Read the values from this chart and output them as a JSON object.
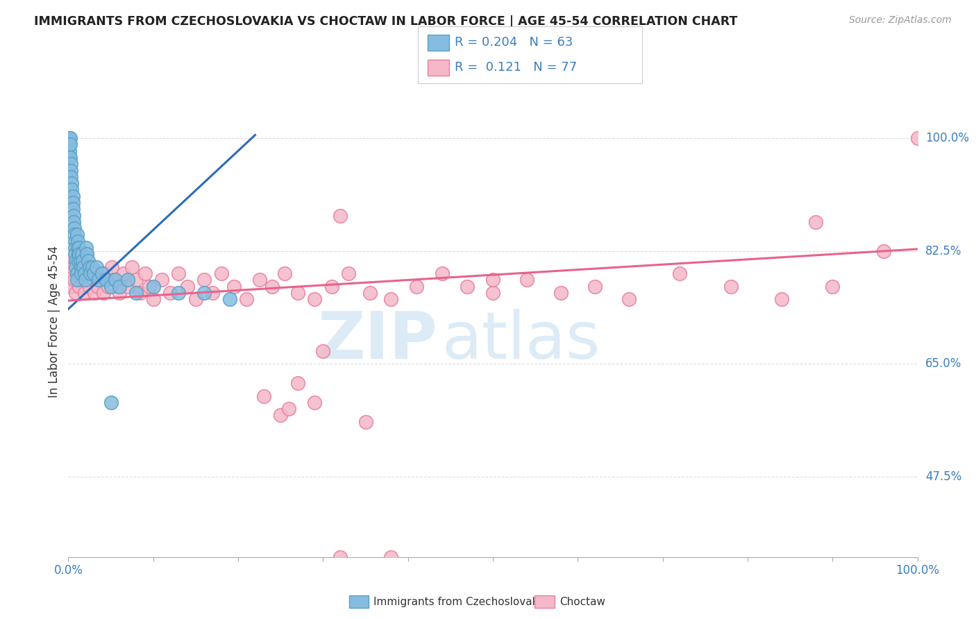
{
  "title": "IMMIGRANTS FROM CZECHOSLOVAKIA VS CHOCTAW IN LABOR FORCE | AGE 45-54 CORRELATION CHART",
  "source": "Source: ZipAtlas.com",
  "ylabel": "In Labor Force | Age 45-54",
  "x_min": 0.0,
  "x_max": 1.0,
  "y_min": 0.35,
  "y_max": 1.08,
  "x_ticks": [
    0.0,
    0.1,
    0.2,
    0.3,
    0.4,
    0.5,
    0.6,
    0.7,
    0.8,
    0.9,
    1.0
  ],
  "y_tick_labels_right": [
    "100.0%",
    "82.5%",
    "65.0%",
    "47.5%"
  ],
  "y_tick_values_right": [
    1.0,
    0.825,
    0.65,
    0.475
  ],
  "watermark_zip": "ZIP",
  "watermark_atlas": "atlas",
  "blue_color": "#85bde0",
  "blue_edge_color": "#5a9fc5",
  "pink_color": "#f4b8c8",
  "pink_edge_color": "#e87fa0",
  "blue_line_color": "#2b6cb8",
  "pink_line_color": "#e8638a",
  "blue_trend_x": [
    0.0,
    0.22
  ],
  "blue_trend_y": [
    0.735,
    1.005
  ],
  "pink_trend_x": [
    0.0,
    1.0
  ],
  "pink_trend_y": [
    0.748,
    0.828
  ],
  "blue_points_x": [
    0.001,
    0.001,
    0.001,
    0.001,
    0.001,
    0.002,
    0.002,
    0.002,
    0.003,
    0.003,
    0.003,
    0.004,
    0.004,
    0.005,
    0.005,
    0.005,
    0.006,
    0.006,
    0.007,
    0.007,
    0.008,
    0.008,
    0.008,
    0.009,
    0.009,
    0.01,
    0.01,
    0.01,
    0.011,
    0.011,
    0.012,
    0.012,
    0.013,
    0.013,
    0.014,
    0.015,
    0.015,
    0.016,
    0.017,
    0.018,
    0.019,
    0.02,
    0.021,
    0.022,
    0.023,
    0.025,
    0.026,
    0.028,
    0.03,
    0.033,
    0.036,
    0.04,
    0.045,
    0.05,
    0.055,
    0.06,
    0.07,
    0.08,
    0.1,
    0.13,
    0.16,
    0.19,
    0.05
  ],
  "blue_points_y": [
    1.0,
    1.0,
    0.99,
    0.98,
    0.97,
    1.0,
    0.99,
    0.97,
    0.96,
    0.95,
    0.94,
    0.93,
    0.92,
    0.91,
    0.9,
    0.89,
    0.88,
    0.87,
    0.86,
    0.85,
    0.84,
    0.83,
    0.82,
    0.81,
    0.8,
    0.79,
    0.78,
    0.85,
    0.84,
    0.83,
    0.82,
    0.81,
    0.83,
    0.82,
    0.81,
    0.8,
    0.79,
    0.82,
    0.81,
    0.8,
    0.79,
    0.78,
    0.83,
    0.82,
    0.81,
    0.8,
    0.79,
    0.8,
    0.79,
    0.8,
    0.78,
    0.79,
    0.78,
    0.77,
    0.78,
    0.77,
    0.78,
    0.76,
    0.77,
    0.76,
    0.76,
    0.75,
    0.59
  ],
  "pink_points_x": [
    0.001,
    0.002,
    0.003,
    0.005,
    0.007,
    0.009,
    0.011,
    0.013,
    0.015,
    0.017,
    0.019,
    0.021,
    0.023,
    0.025,
    0.027,
    0.029,
    0.031,
    0.033,
    0.035,
    0.038,
    0.041,
    0.044,
    0.047,
    0.051,
    0.055,
    0.06,
    0.065,
    0.07,
    0.075,
    0.08,
    0.085,
    0.09,
    0.095,
    0.1,
    0.11,
    0.12,
    0.13,
    0.14,
    0.15,
    0.16,
    0.17,
    0.18,
    0.195,
    0.21,
    0.225,
    0.24,
    0.255,
    0.27,
    0.29,
    0.31,
    0.33,
    0.355,
    0.38,
    0.41,
    0.44,
    0.47,
    0.5,
    0.54,
    0.58,
    0.62,
    0.66,
    0.72,
    0.78,
    0.84,
    0.9,
    0.96,
    0.3,
    0.27,
    0.25,
    0.23,
    0.32,
    0.35,
    0.29,
    0.26,
    0.38,
    0.5
  ],
  "pink_points_y": [
    0.81,
    0.79,
    0.77,
    0.8,
    0.78,
    0.76,
    0.79,
    0.77,
    0.8,
    0.78,
    0.76,
    0.82,
    0.79,
    0.77,
    0.8,
    0.78,
    0.76,
    0.79,
    0.77,
    0.78,
    0.76,
    0.79,
    0.77,
    0.8,
    0.78,
    0.76,
    0.79,
    0.77,
    0.8,
    0.78,
    0.76,
    0.79,
    0.77,
    0.75,
    0.78,
    0.76,
    0.79,
    0.77,
    0.75,
    0.78,
    0.76,
    0.79,
    0.77,
    0.75,
    0.78,
    0.77,
    0.79,
    0.76,
    0.75,
    0.77,
    0.79,
    0.76,
    0.75,
    0.77,
    0.79,
    0.77,
    0.76,
    0.78,
    0.76,
    0.77,
    0.75,
    0.79,
    0.77,
    0.75,
    0.77,
    0.825,
    0.67,
    0.62,
    0.57,
    0.6,
    0.88,
    0.56,
    0.59,
    0.58,
    0.35,
    0.78
  ],
  "pink_outlier_x": [
    0.88
  ],
  "pink_outlier_y": [
    0.87
  ],
  "pink_far_x": [
    1.0
  ],
  "pink_far_y": [
    1.0
  ],
  "pink_low_x": [
    0.32
  ],
  "pink_low_y": [
    0.35
  ]
}
